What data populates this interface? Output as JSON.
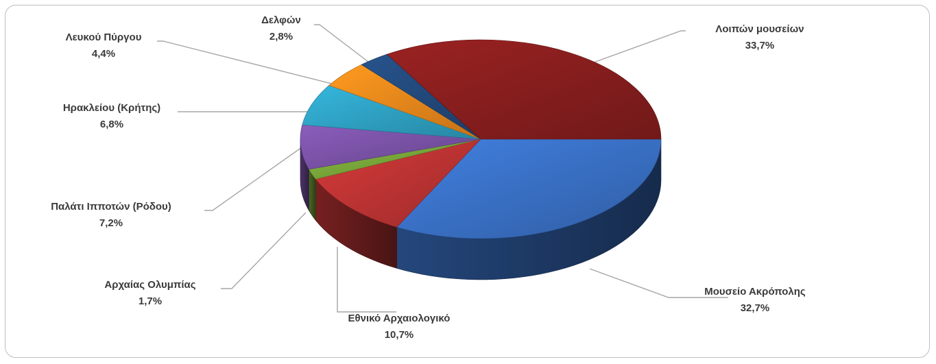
{
  "chart_data": {
    "type": "pie",
    "title": "",
    "style": "3d",
    "slices": [
      {
        "name": "Μουσείο Ακρόπολης",
        "value_label": "32,7%",
        "value": 32.7,
        "color": "#3a72c8"
      },
      {
        "name": "Εθνικό Αρχαιολογικό",
        "value_label": "10,7%",
        "value": 10.7,
        "color": "#c03434"
      },
      {
        "name": "Αρχαίας Ολυμπίας",
        "value_label": "1,7%",
        "value": 1.7,
        "color": "#7aa83a"
      },
      {
        "name": "Παλάτι Ιπποτών (Ρόδου)",
        "value_label": "7,2%",
        "value": 7.2,
        "color": "#7b53a8"
      },
      {
        "name": "Ηρακλείου (Κρήτης)",
        "value_label": "6,8%",
        "value": 6.8,
        "color": "#2fa3c6"
      },
      {
        "name": "Λευκού Πύργου",
        "value_label": "4,4%",
        "value": 4.4,
        "color": "#f08a1c"
      },
      {
        "name": "Δελφών",
        "value_label": "2,8%",
        "value": 2.8,
        "color": "#234b7e"
      },
      {
        "name": "Λοιπών μουσείων",
        "value_label": "33,7%",
        "value": 33.7,
        "color": "#8a1e1e"
      }
    ],
    "legend": "none",
    "data_labels": "outside-with-leader-lines"
  }
}
